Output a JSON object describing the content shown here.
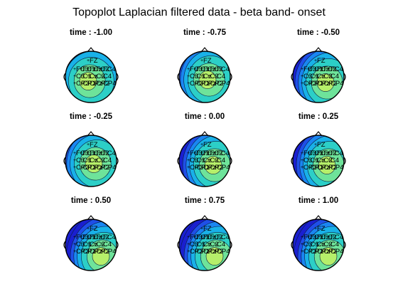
{
  "figure": {
    "title": "Topoplot Laplacian filtered data - beta band- onset"
  },
  "chart_data": {
    "type": "heatmap",
    "title": "Topoplot Laplacian filtered data - beta band- onset",
    "colormap": [
      "#1a1fd0",
      "#1f4fe8",
      "#1a86f2",
      "#19b1e8",
      "#2ccfc7",
      "#6ee39a",
      "#b6ef6a"
    ],
    "electrodes": [
      [
        "FZ"
      ],
      [
        "FC3",
        "FC1",
        "FCz",
        "FC2",
        "FC4"
      ],
      [
        "C3",
        "C1",
        "Cz",
        "C2",
        "C4"
      ],
      [
        "CP3",
        "CP1",
        "CPz",
        "CP2",
        "CP4"
      ]
    ],
    "panels": [
      {
        "title": "time : -1.00",
        "low_side": "left",
        "peak": "center-left"
      },
      {
        "title": "time : -0.75",
        "low_side": "left",
        "peak": "center"
      },
      {
        "title": "time : -0.50",
        "low_side": "left",
        "peak": "center-right"
      },
      {
        "title": "time : -0.25",
        "low_side": "left",
        "peak": "center"
      },
      {
        "title": "time : 0.00",
        "low_side": "left",
        "peak": "right"
      },
      {
        "title": "time : 0.25",
        "low_side": "left",
        "peak": "right"
      },
      {
        "title": "time : 0.50",
        "low_side": "left",
        "peak": "lower-right"
      },
      {
        "title": "time : 0.75",
        "low_side": "left",
        "peak": "lower-right"
      },
      {
        "title": "time : 1.00",
        "low_side": "left",
        "peak": "lower-right"
      }
    ]
  }
}
